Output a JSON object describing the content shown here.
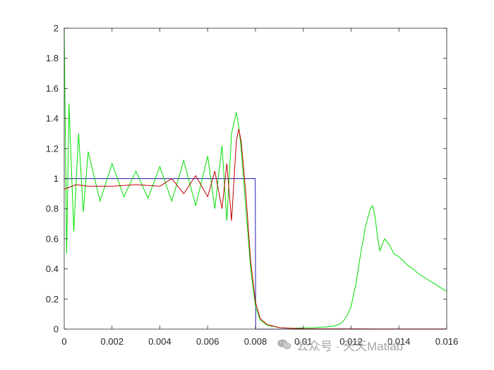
{
  "chart_data": {
    "type": "line",
    "title": "",
    "xlabel": "",
    "ylabel": "",
    "xlim": [
      0,
      0.016
    ],
    "ylim": [
      0,
      2
    ],
    "xticks": [
      "0",
      "0.002",
      "0.004",
      "0.006",
      "0.008",
      "0.01",
      "0.012",
      "0.014",
      "0.016"
    ],
    "yticks": [
      "0",
      "0.2",
      "0.4",
      "0.6",
      "0.8",
      "1",
      "1.2",
      "1.4",
      "1.6",
      "1.8",
      "2"
    ],
    "grid": false,
    "legend": "none",
    "series": [
      {
        "color": "#1f1fb4",
        "x": [
          0,
          0.00799,
          0.00801,
          0.016
        ],
        "y": [
          1,
          1,
          0,
          0
        ]
      },
      {
        "color": "#00e000",
        "x": [
          0,
          0.0001,
          0.0002,
          0.0004,
          0.0006,
          0.0008,
          0.001,
          0.0015,
          0.002,
          0.0025,
          0.003,
          0.0035,
          0.004,
          0.0045,
          0.005,
          0.0055,
          0.006,
          0.0063,
          0.0066,
          0.0068,
          0.007,
          0.0072,
          0.0073,
          0.0074,
          0.0076,
          0.0078,
          0.008,
          0.0082,
          0.0085,
          0.009,
          0.0095,
          0.01,
          0.0105,
          0.011,
          0.0113,
          0.0116,
          0.0118,
          0.012,
          0.0122,
          0.0124,
          0.0126,
          0.0128,
          0.0129,
          0.013,
          0.0131,
          0.0132,
          0.0134,
          0.0136,
          0.0138,
          0.014,
          0.0142,
          0.0144,
          0.0146,
          0.0148,
          0.015,
          0.0152,
          0.0154,
          0.0156,
          0.0158,
          0.016
        ],
        "y": [
          2,
          0.5,
          1.5,
          0.65,
          1.3,
          0.78,
          1.18,
          0.85,
          1.1,
          0.88,
          1.05,
          0.87,
          1.08,
          0.85,
          1.12,
          0.82,
          1.15,
          0.8,
          1.22,
          0.72,
          1.3,
          1.44,
          1.35,
          1.2,
          0.8,
          0.4,
          0.15,
          0.06,
          0.025,
          0.01,
          0.005,
          0.008,
          0.01,
          0.015,
          0.02,
          0.04,
          0.08,
          0.15,
          0.3,
          0.5,
          0.68,
          0.8,
          0.82,
          0.75,
          0.62,
          0.52,
          0.6,
          0.56,
          0.5,
          0.48,
          0.45,
          0.42,
          0.4,
          0.37,
          0.35,
          0.33,
          0.31,
          0.29,
          0.27,
          0.25
        ]
      },
      {
        "color": "#c00000",
        "x": [
          0,
          0.0005,
          0.001,
          0.002,
          0.003,
          0.004,
          0.0045,
          0.005,
          0.0055,
          0.006,
          0.0063,
          0.0066,
          0.0068,
          0.007,
          0.0072,
          0.0073,
          0.0074,
          0.0076,
          0.0078,
          0.008,
          0.0082,
          0.0085,
          0.009,
          0.0095,
          0.01,
          0.011,
          0.012,
          0.013,
          0.014,
          0.015,
          0.016
        ],
        "y": [
          0.93,
          0.96,
          0.95,
          0.95,
          0.96,
          0.95,
          1.0,
          0.9,
          1.02,
          0.88,
          1.05,
          0.8,
          1.1,
          0.72,
          1.25,
          1.33,
          1.25,
          0.9,
          0.45,
          0.18,
          0.07,
          0.03,
          0.01,
          0.005,
          0.003,
          0.002,
          0.002,
          0.001,
          0.001,
          0.001,
          0.001
        ]
      }
    ]
  },
  "watermark": {
    "icon": "wechat-icon",
    "text": "公众号 · 天天Matlab"
  }
}
